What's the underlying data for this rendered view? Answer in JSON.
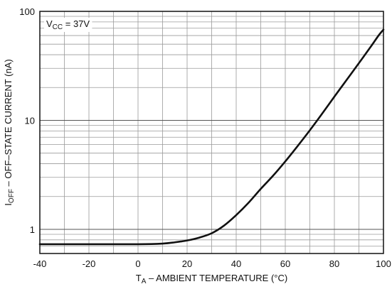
{
  "chart_data": {
    "type": "line",
    "xlabel": {
      "main": "T",
      "sub": "A",
      "rest": " – AMBIENT TEMPERATURE (°C)"
    },
    "ylabel": {
      "main": "I",
      "sub": "OFF",
      "rest": " – OFF–STATE CURRENT (nA)"
    },
    "annotation": {
      "main": "V",
      "sub": "CC",
      "rest": " = 37V"
    },
    "xlim": [
      -40,
      100
    ],
    "ylim": [
      0.6,
      100
    ],
    "yscale": "log",
    "grid": true,
    "x_ticks": [
      -40,
      -20,
      0,
      20,
      40,
      60,
      80,
      100
    ],
    "x_tick_labels": [
      "-40",
      "-20",
      "0",
      "20",
      "40",
      "60",
      "80",
      "100"
    ],
    "y_tick_values": [
      1,
      10,
      100
    ],
    "y_tick_labels": [
      "1",
      "10",
      "100"
    ],
    "line_color": "#111111",
    "grid_color": "#9a9a9a",
    "series": [
      {
        "x": [
          -40,
          -20,
          0,
          10,
          15,
          20,
          25,
          30,
          35,
          40,
          45,
          50,
          55,
          60,
          65,
          70,
          75,
          80,
          85,
          90,
          95,
          98,
          100
        ],
        "y": [
          0.73,
          0.73,
          0.73,
          0.74,
          0.76,
          0.79,
          0.84,
          0.92,
          1.08,
          1.35,
          1.75,
          2.35,
          3.1,
          4.2,
          5.8,
          8.1,
          11.5,
          16.5,
          23.5,
          33.5,
          48,
          60,
          68
        ]
      }
    ]
  }
}
